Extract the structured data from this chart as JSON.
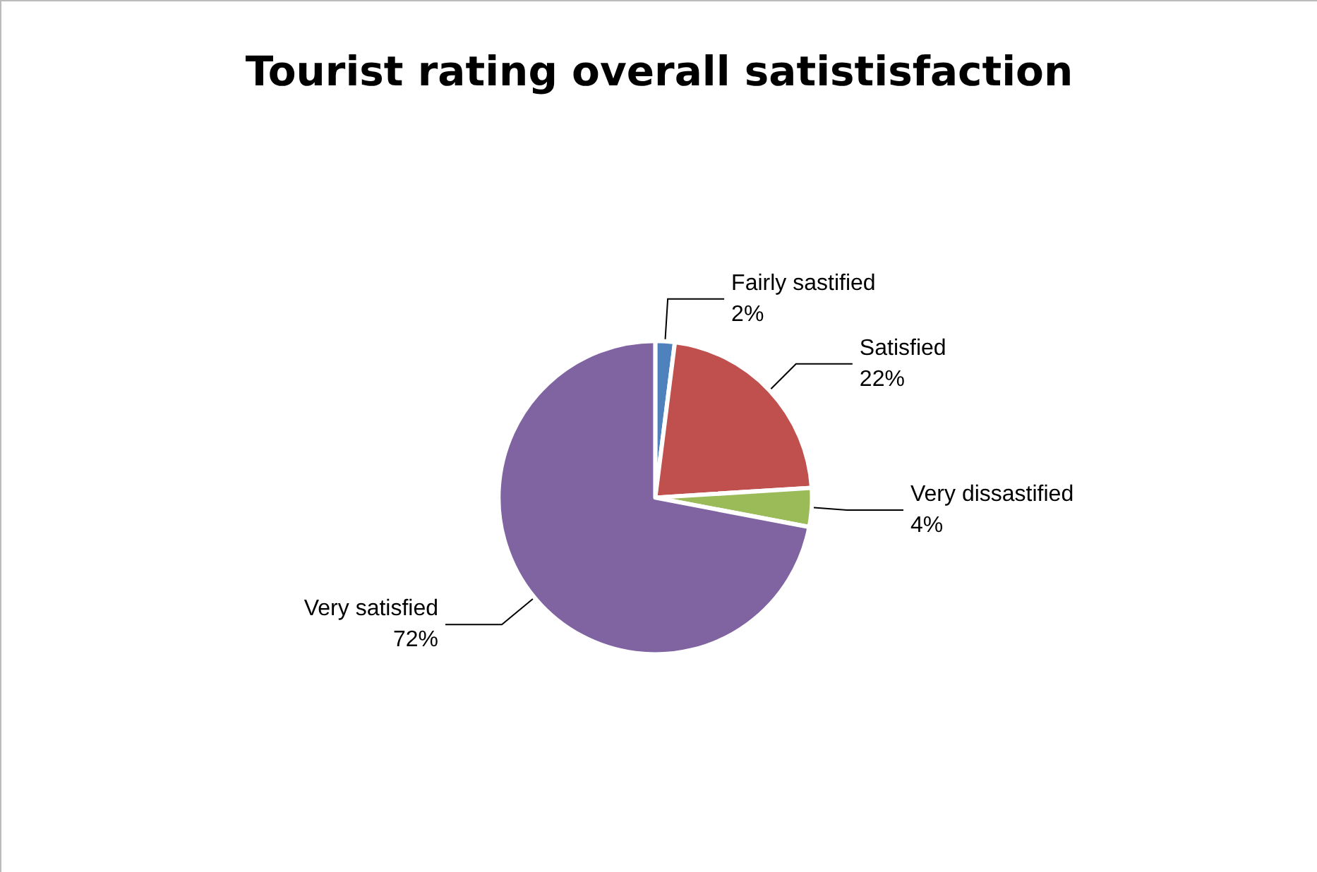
{
  "chart_data": {
    "type": "pie",
    "title": "Tourist rating overall satistisfaction",
    "categories": [
      "Fairly sastified",
      "Satisfied",
      "Very dissastified",
      "Very satisfied"
    ],
    "values": [
      2,
      22,
      4,
      72
    ],
    "value_labels": [
      "2%",
      "22%",
      "4%",
      "72%"
    ],
    "colors": [
      "#4f81bd",
      "#c0504d",
      "#9bbb59",
      "#8064a2"
    ],
    "legend": false
  }
}
